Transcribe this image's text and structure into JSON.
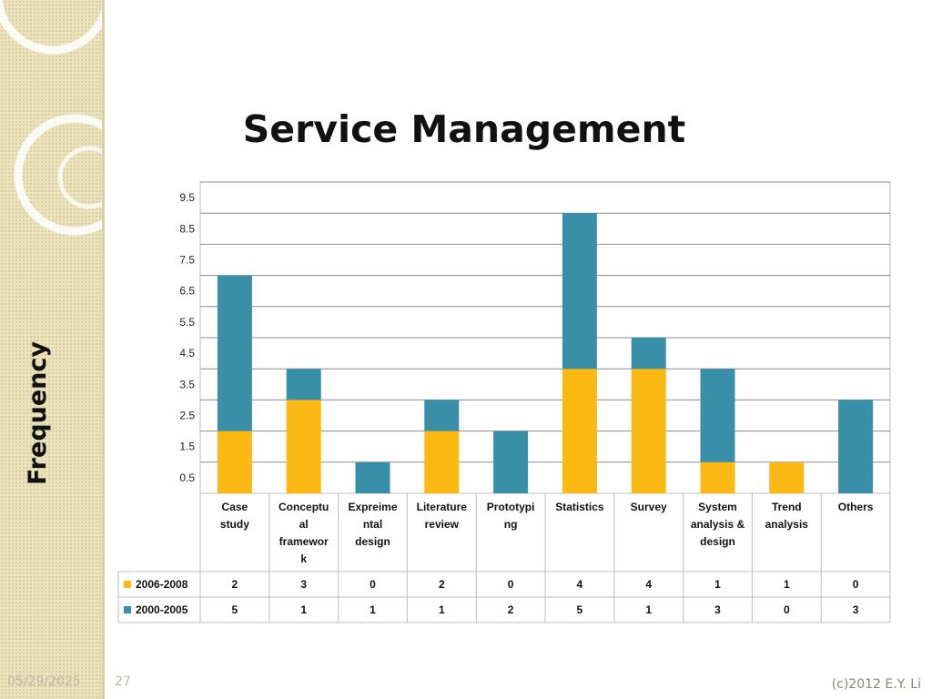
{
  "slide": {
    "date": "05/29/2025",
    "page_number": "27",
    "copyright": "(c)2012 E.Y. Li"
  },
  "colors": {
    "series_2006_2008": "#FDB913",
    "series_2000_2005": "#3A8FA8",
    "sidebar": "#ECE3BD"
  },
  "chart_data": {
    "type": "bar",
    "stacked": true,
    "title": "Service Management",
    "ylabel": "Frequency",
    "xlabel": "",
    "ylim": [
      0,
      10
    ],
    "yticks": [
      "0.5",
      "1.5",
      "2.5",
      "3.5",
      "4.5",
      "5.5",
      "6.5",
      "7.5",
      "8.5",
      "9.5"
    ],
    "grid": true,
    "legend": "data-table-left",
    "categories": [
      [
        "Case",
        "study"
      ],
      [
        "Conceptu",
        "al",
        "framewor",
        "k"
      ],
      [
        "Expreime",
        "ntal",
        "design"
      ],
      [
        "Literature",
        "review"
      ],
      [
        "Prototypi",
        "ng"
      ],
      [
        "Statistics"
      ],
      [
        "Survey"
      ],
      [
        "System",
        "analysis &",
        "design"
      ],
      [
        "Trend",
        "analysis"
      ],
      [
        "Others"
      ]
    ],
    "series": [
      {
        "name": "2006-2008",
        "values": [
          2,
          3,
          0,
          2,
          0,
          4,
          4,
          1,
          1,
          0
        ]
      },
      {
        "name": "2000-2005",
        "values": [
          5,
          1,
          1,
          1,
          2,
          5,
          1,
          3,
          0,
          3
        ]
      }
    ]
  }
}
